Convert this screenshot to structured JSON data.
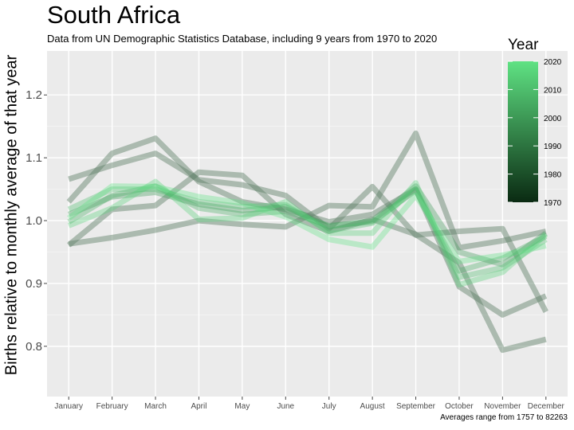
{
  "chart_data": {
    "type": "line",
    "title": "South Africa",
    "subtitle": "Data from UN Demographic Statistics Database, including 9 years from 1970 to 2020",
    "caption": "Averages range from 1757 to 82263",
    "xlabel": "",
    "ylabel": "Births relative to monthly average of that year",
    "categories": [
      "January",
      "February",
      "March",
      "April",
      "May",
      "June",
      "July",
      "August",
      "September",
      "October",
      "November",
      "December"
    ],
    "ylim": [
      0.72,
      1.27
    ],
    "yticks": [
      0.8,
      0.9,
      1.0,
      1.1,
      1.2
    ],
    "ytick_labels": [
      "0.8",
      "0.9",
      "1.0",
      "1.1",
      "1.2"
    ],
    "grid": true,
    "legend": {
      "title": "Year",
      "position": "right",
      "type": "colorbar",
      "range": [
        1970,
        2020
      ],
      "ticks": [
        1970,
        1980,
        1990,
        2000,
        2010,
        2020
      ],
      "tick_labels": [
        "1970",
        "1980",
        "1990",
        "2000",
        "2010",
        "2020"
      ],
      "color_low": "#0a2a12",
      "color_high": "#5fe283"
    },
    "series": [
      {
        "year": 1975,
        "values": [
          1.066,
          1.088,
          1.107,
          1.065,
          1.057,
          1.04,
          0.987,
          1.054,
          0.977,
          0.983,
          0.987,
          0.855
        ]
      },
      {
        "year": 1980,
        "values": [
          0.963,
          0.973,
          0.985,
          1.0,
          0.994,
          0.99,
          1.024,
          1.022,
          1.139,
          0.957,
          0.968,
          0.983
        ]
      },
      {
        "year": 1985,
        "values": [
          1.03,
          1.107,
          1.131,
          1.062,
          1.03,
          1.018,
          0.998,
          1.01,
          1.05,
          0.895,
          0.85,
          0.88
        ]
      },
      {
        "year": 1990,
        "values": [
          0.961,
          1.018,
          1.024,
          1.077,
          1.072,
          1.01,
          0.983,
          1.002,
          0.978,
          0.933,
          0.794,
          0.811
        ]
      },
      {
        "year": 2000,
        "values": [
          1.01,
          1.038,
          1.045,
          1.026,
          1.016,
          1.022,
          0.99,
          1.0,
          1.055,
          0.95,
          0.93,
          0.98
        ]
      },
      {
        "year": 2005,
        "values": [
          0.998,
          1.04,
          1.055,
          1.02,
          1.01,
          1.015,
          0.992,
          0.998,
          1.048,
          0.92,
          0.94,
          0.975
        ]
      },
      {
        "year": 2010,
        "values": [
          1.018,
          1.05,
          1.05,
          1.03,
          1.022,
          1.025,
          0.984,
          0.996,
          1.05,
          0.91,
          0.925,
          0.97
        ]
      },
      {
        "year": 2015,
        "values": [
          0.992,
          1.02,
          1.062,
          1.002,
          1.004,
          1.03,
          0.98,
          0.98,
          1.06,
          0.898,
          0.918,
          0.978
        ]
      },
      {
        "year": 2020,
        "values": [
          1.004,
          1.055,
          1.054,
          1.038,
          1.028,
          1.006,
          0.97,
          0.958,
          1.04,
          0.935,
          0.945,
          0.96
        ]
      }
    ]
  }
}
